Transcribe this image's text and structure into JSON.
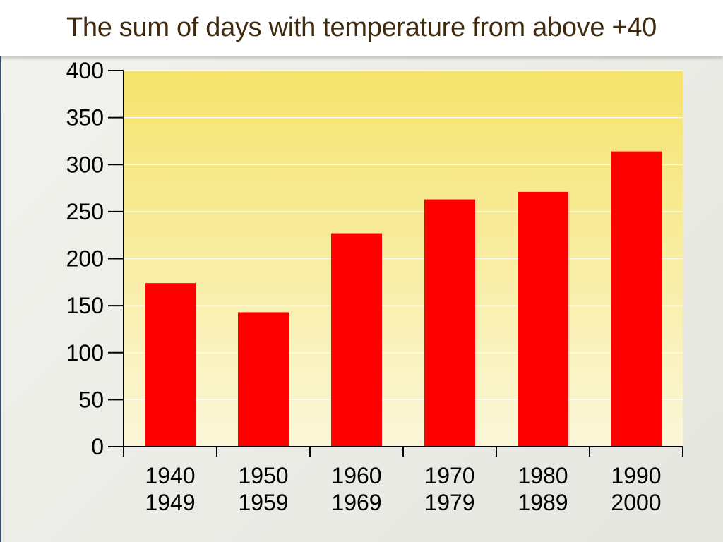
{
  "slide": {
    "title": "The sum of days with temperature from above +40"
  },
  "chart_data": {
    "type": "bar",
    "title": "The sum of days with temperature from above +40",
    "xlabel": "",
    "ylabel": "",
    "categories": [
      [
        "1940",
        "1949"
      ],
      [
        "1950",
        "1959"
      ],
      [
        "1960",
        "1969"
      ],
      [
        "1970",
        "1979"
      ],
      [
        "1980",
        "1989"
      ],
      [
        "1990",
        "2000"
      ]
    ],
    "values": [
      174,
      143,
      227,
      263,
      271,
      314
    ],
    "ylim": [
      0,
      400
    ],
    "yticks": [
      "0",
      "50",
      "100",
      "150",
      "200",
      "250",
      "300",
      "350",
      "400"
    ],
    "grid": true,
    "legend": "none",
    "colors": {
      "bar": "#ff0000",
      "plot_bg_top": "#f5e36b",
      "plot_bg_bottom": "#fbf7d9",
      "title": "#3f2a0e"
    }
  }
}
